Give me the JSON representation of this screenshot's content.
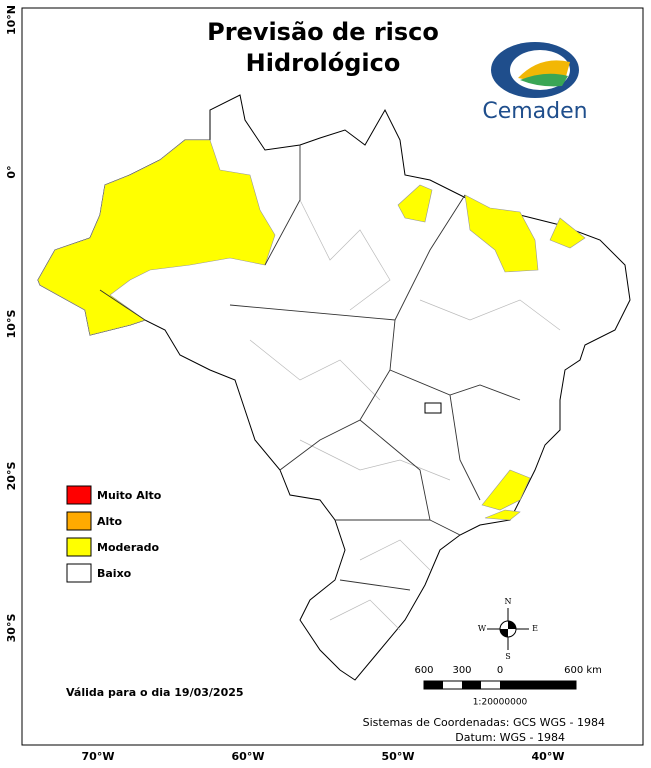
{
  "title": [
    "Previsão de risco",
    "Hidrológico"
  ],
  "logo": "Cemaden",
  "lat_labels": [
    "10°N",
    "0°",
    "10°S",
    "20°S",
    "30°S"
  ],
  "lon_labels": [
    "70°W",
    "60°W",
    "50°W",
    "40°W"
  ],
  "legend": [
    {
      "label": "Muito Alto",
      "color": "#ff0000"
    },
    {
      "label": "Alto",
      "color": "#ffaa00"
    },
    {
      "label": "Moderado",
      "color": "#ffff00"
    },
    {
      "label": "Baixo",
      "color": "#ffffff"
    }
  ],
  "valid_date": "Válida para o dia 19/03/2025",
  "compass": {
    "n": "N",
    "s": "S",
    "e": "E",
    "w": "W"
  },
  "scale": {
    "labels": [
      "600",
      "300",
      "0",
      "600 km"
    ],
    "ratio": "1:20000000"
  },
  "footer": [
    "Sistemas de Coordenadas: GCS WGS - 1984",
    "Datum: WGS - 1984"
  ]
}
